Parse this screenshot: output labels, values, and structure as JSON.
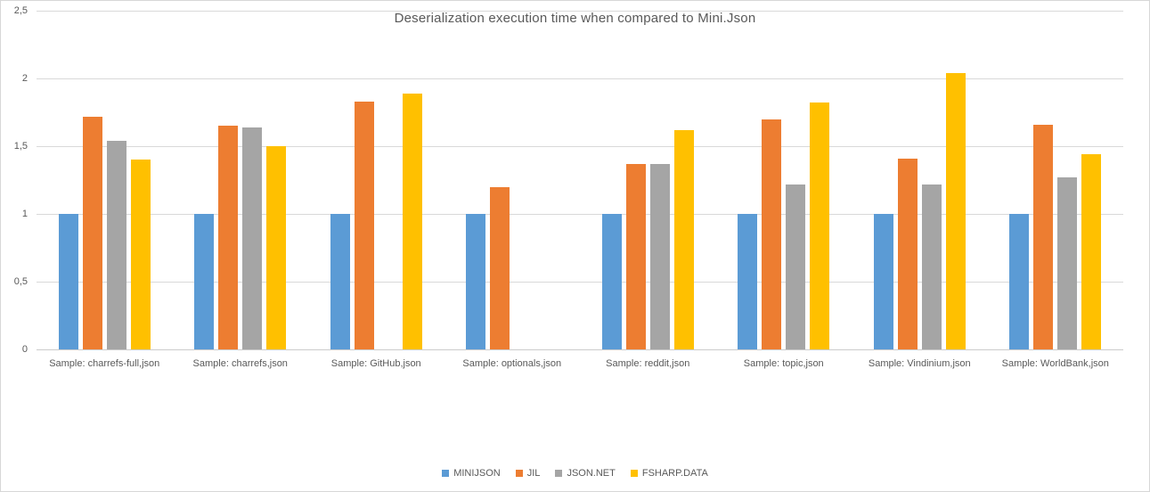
{
  "chart_data": {
    "type": "bar",
    "title": "Deserialization execution time when compared to Mini.Json",
    "categories": [
      "Sample: charrefs-full,json",
      "Sample: charrefs,json",
      "Sample: GitHub,json",
      "Sample: optionals,json",
      "Sample: reddit,json",
      "Sample: topic,json",
      "Sample: Vindinium,json",
      "Sample: WorldBank,json"
    ],
    "series": [
      {
        "name": "MINIJSON",
        "color": "#5B9BD5",
        "values": [
          1.0,
          1.0,
          1.0,
          1.0,
          1.0,
          1.0,
          1.0,
          1.0
        ]
      },
      {
        "name": "JIL",
        "color": "#ED7D31",
        "values": [
          1.72,
          1.65,
          1.83,
          1.2,
          1.37,
          1.7,
          1.41,
          1.66
        ]
      },
      {
        "name": "JSON.NET",
        "color": "#A5A5A5",
        "values": [
          1.54,
          1.64,
          0,
          0,
          1.37,
          1.22,
          1.22,
          1.27
        ]
      },
      {
        "name": "FSHARP.DATA",
        "color": "#FFC000",
        "values": [
          1.4,
          1.5,
          1.89,
          0,
          1.62,
          1.82,
          2.04,
          1.44
        ]
      }
    ],
    "y_axis": {
      "min": 0,
      "max": 2.5,
      "step": 0.5,
      "tick_labels": [
        "0",
        "0,5",
        "1",
        "1,5",
        "2",
        "2,5"
      ]
    },
    "grid": true,
    "legend_position": "bottom",
    "colors": {
      "gridline": "#D9D9D9",
      "axis_line": "#CCCCCC",
      "text": "#595959",
      "background": "#FFFFFF",
      "border": "#D7D7D7"
    }
  }
}
